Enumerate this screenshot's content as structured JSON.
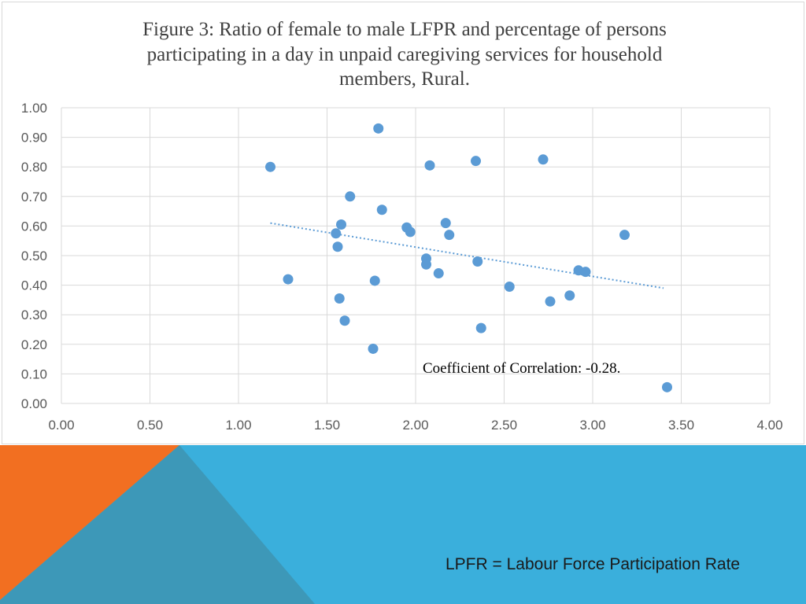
{
  "colors": {
    "point": "#5b9bd5",
    "trendline": "#5b9bd5",
    "gridline": "#d9d9d9",
    "band_blue": "#3aafdc",
    "band_orange": "#f26f21",
    "band_teal": "#3d98b8"
  },
  "chart_data": {
    "type": "scatter",
    "title": "Figure 3: Ratio of female to male LFPR and percentage of persons participating in a day in unpaid caregiving  services for household members, Rural.",
    "title_lines": [
      "Figure 3: Ratio of female to male LFPR and percentage of persons",
      "participating  in a day in unpaid caregiving  services for household",
      "members, Rural."
    ],
    "xlabel": "",
    "ylabel": "",
    "xlim": [
      0,
      4
    ],
    "ylim": [
      0,
      1
    ],
    "x_ticks": [
      "0.00",
      "0.50",
      "1.00",
      "1.50",
      "2.00",
      "2.50",
      "3.00",
      "3.50",
      "4.00"
    ],
    "y_ticks": [
      "0.00",
      "0.10",
      "0.20",
      "0.30",
      "0.40",
      "0.50",
      "0.60",
      "0.70",
      "0.80",
      "0.90",
      "1.00"
    ],
    "grid": true,
    "trendline": {
      "type": "linear",
      "x": [
        1.18,
        3.4
      ],
      "y": [
        0.61,
        0.39
      ],
      "style": "dotted"
    },
    "annotation": "Coefficient of Correlation: -0.28.",
    "points": [
      {
        "x": 1.18,
        "y": 0.8
      },
      {
        "x": 1.28,
        "y": 0.42
      },
      {
        "x": 1.55,
        "y": 0.575
      },
      {
        "x": 1.56,
        "y": 0.53
      },
      {
        "x": 1.57,
        "y": 0.355
      },
      {
        "x": 1.58,
        "y": 0.605
      },
      {
        "x": 1.6,
        "y": 0.28
      },
      {
        "x": 1.63,
        "y": 0.7
      },
      {
        "x": 1.76,
        "y": 0.185
      },
      {
        "x": 1.77,
        "y": 0.415
      },
      {
        "x": 1.79,
        "y": 0.93
      },
      {
        "x": 1.81,
        "y": 0.655
      },
      {
        "x": 1.95,
        "y": 0.595
      },
      {
        "x": 1.97,
        "y": 0.58
      },
      {
        "x": 2.06,
        "y": 0.49
      },
      {
        "x": 2.06,
        "y": 0.47
      },
      {
        "x": 2.08,
        "y": 0.805
      },
      {
        "x": 2.13,
        "y": 0.44
      },
      {
        "x": 2.17,
        "y": 0.61
      },
      {
        "x": 2.19,
        "y": 0.57
      },
      {
        "x": 2.34,
        "y": 0.82
      },
      {
        "x": 2.35,
        "y": 0.48
      },
      {
        "x": 2.37,
        "y": 0.255
      },
      {
        "x": 2.53,
        "y": 0.395
      },
      {
        "x": 2.72,
        "y": 0.825
      },
      {
        "x": 2.76,
        "y": 0.345
      },
      {
        "x": 2.87,
        "y": 0.365
      },
      {
        "x": 2.92,
        "y": 0.45
      },
      {
        "x": 2.96,
        "y": 0.445
      },
      {
        "x": 3.18,
        "y": 0.57
      },
      {
        "x": 3.42,
        "y": 0.055
      }
    ]
  },
  "footer": {
    "note": "LPFR = Labour Force Participation Rate"
  }
}
